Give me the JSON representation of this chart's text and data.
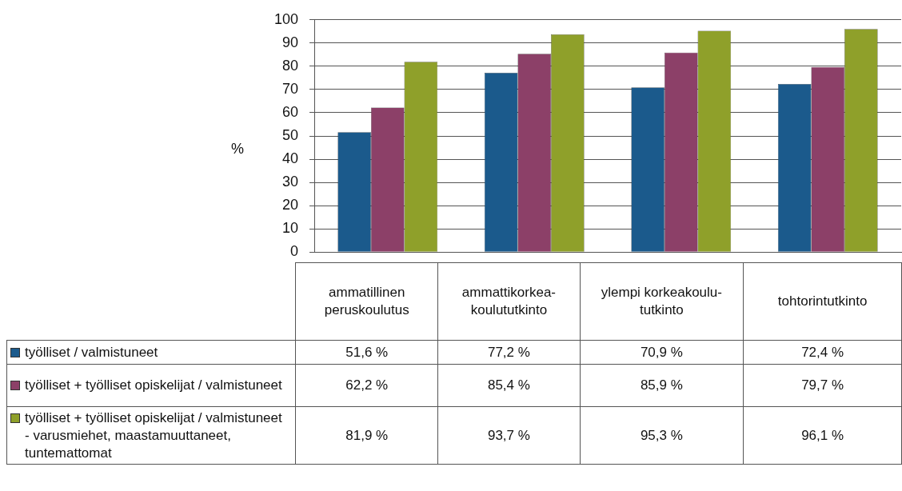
{
  "chart_data": {
    "type": "bar",
    "ylabel": "%",
    "categories": [
      "ammatillinen peruskoulutus",
      "ammattikorkea-koulututkinto",
      "ylempi korkeakoulu-tutkinto",
      "tohtorintutkinto"
    ],
    "series": [
      {
        "name": "työlliset / valmistuneet",
        "color": "#1b5a8c",
        "values": [
          51.6,
          77.2,
          70.9,
          72.4
        ],
        "value_labels": [
          "51,6 %",
          "77,2 %",
          "70,9 %",
          "72,4 %"
        ]
      },
      {
        "name": "työlliset + työlliset opiskelijat / valmistuneet",
        "color": "#8c4068",
        "values": [
          62.2,
          85.4,
          85.9,
          79.7
        ],
        "value_labels": [
          "62,2 %",
          "85,4 %",
          "85,9 %",
          "79,7 %"
        ]
      },
      {
        "name": "työlliset + työlliset opiskelijat / valmistuneet - varusmiehet, maastamuuttaneet, tuntemattomat",
        "color": "#8fa02a",
        "values": [
          81.9,
          93.7,
          95.3,
          96.1
        ],
        "value_labels": [
          "81,9 %",
          "93,7 %",
          "95,3 %",
          "96,1 %"
        ]
      }
    ],
    "ylim": [
      0,
      100
    ],
    "yticks": [
      0,
      10,
      20,
      30,
      40,
      50,
      60,
      70,
      80,
      90,
      100
    ],
    "grid": "y",
    "legend": "bottom"
  }
}
